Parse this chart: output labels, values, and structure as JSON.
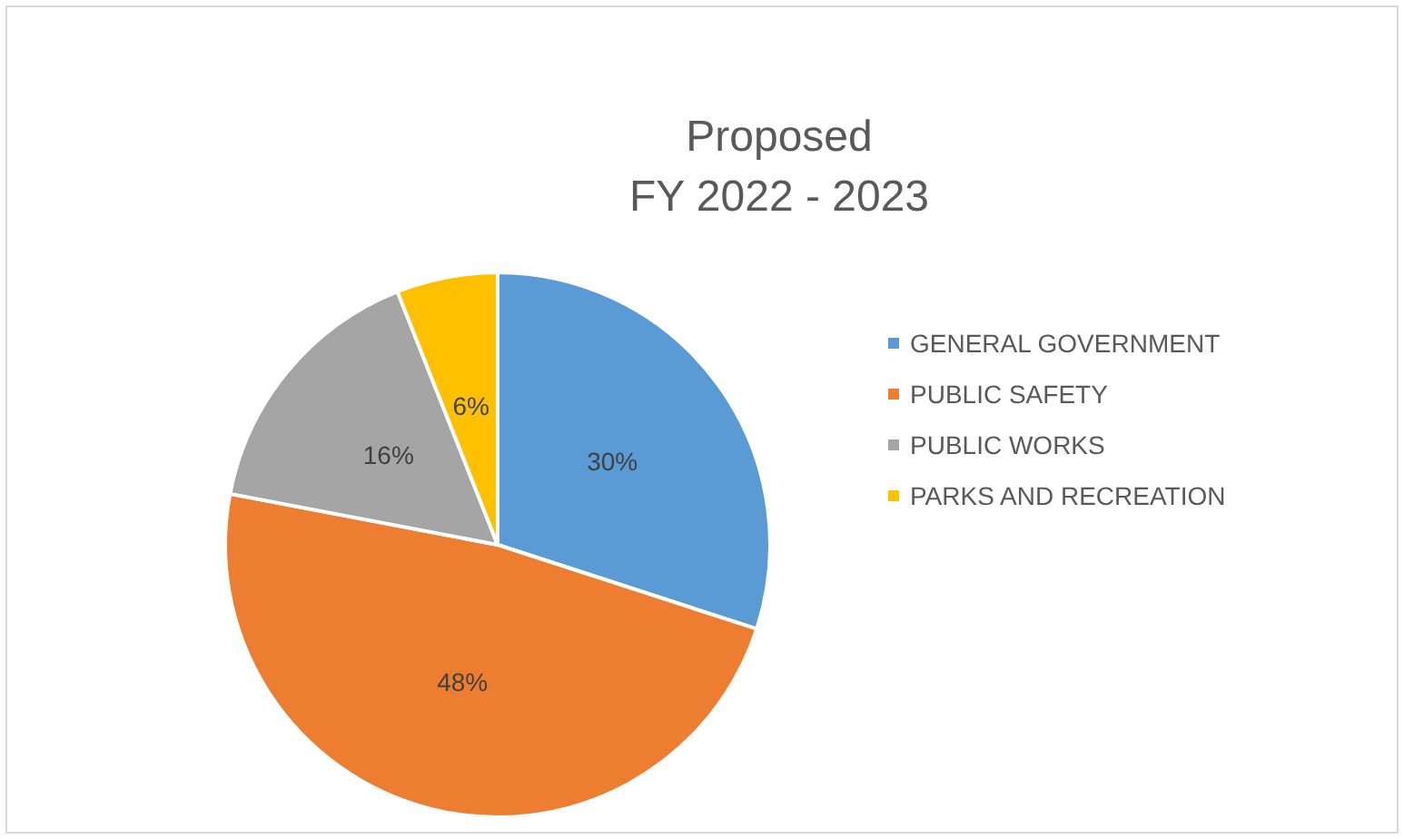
{
  "chart_data": {
    "type": "pie",
    "title": "Proposed\nFY 2022 - 2023",
    "categories": [
      "GENERAL GOVERNMENT",
      "PUBLIC SAFETY",
      "PUBLIC WORKS",
      "PARKS AND RECREATION"
    ],
    "values": [
      30,
      48,
      16,
      6
    ],
    "colors": [
      "#5b9bd5",
      "#ed7d31",
      "#a5a5a5",
      "#ffc000"
    ],
    "value_labels": [
      "30%",
      "48%",
      "16%",
      "6%"
    ],
    "legend": "right"
  }
}
